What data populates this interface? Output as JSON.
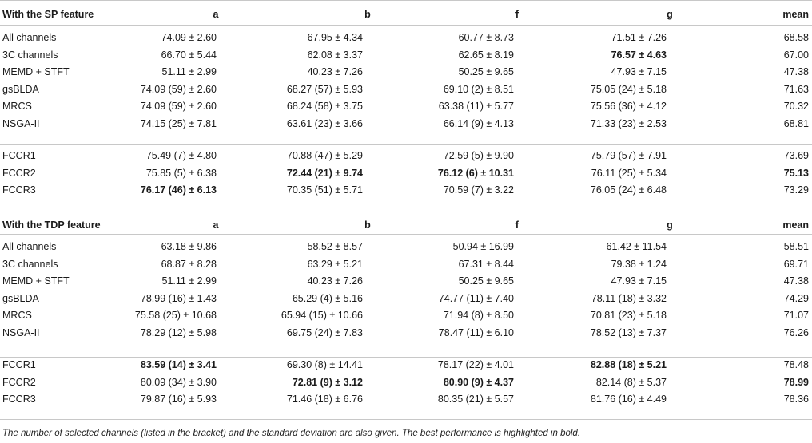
{
  "sections": [
    {
      "header": [
        "With the SP feature",
        "a",
        "b",
        "f",
        "g",
        "mean"
      ],
      "groups": [
        [
          {
            "name": "All channels",
            "cells": [
              "74.09 ± 2.60",
              "67.95 ± 4.34",
              "60.77 ± 8.73",
              "71.51 ± 7.26",
              "68.58"
            ],
            "bold": [
              false,
              false,
              false,
              false,
              false
            ]
          },
          {
            "name": "3C channels",
            "cells": [
              "66.70 ± 5.44",
              "62.08 ± 3.37",
              "62.65 ± 8.19",
              "76.57 ± 4.63",
              "67.00"
            ],
            "bold": [
              false,
              false,
              false,
              true,
              false
            ]
          },
          {
            "name": "MEMD + STFT",
            "cells": [
              "51.11 ± 2.99",
              "40.23 ± 7.26",
              "50.25 ± 9.65",
              "47.93 ± 7.15",
              "47.38"
            ],
            "bold": [
              false,
              false,
              false,
              false,
              false
            ]
          },
          {
            "name": "gsBLDA",
            "cells": [
              "74.09 (59) ± 2.60",
              "68.27 (57) ± 5.93",
              "69.10 (2) ± 8.51",
              "75.05 (24) ± 5.18",
              "71.63"
            ],
            "bold": [
              false,
              false,
              false,
              false,
              false
            ]
          },
          {
            "name": "MRCS",
            "cells": [
              "74.09 (59) ± 2.60",
              "68.24 (58) ± 3.75",
              "63.38 (11) ± 5.77",
              "75.56 (36) ± 4.12",
              "70.32"
            ],
            "bold": [
              false,
              false,
              false,
              false,
              false
            ]
          },
          {
            "name": "NSGA-II",
            "cells": [
              "74.15 (25) ± 7.81",
              "63.61 (23) ± 3.66",
              "66.14 (9) ± 4.13",
              "71.33 (23) ± 2.53",
              "68.81"
            ],
            "bold": [
              false,
              false,
              false,
              false,
              false
            ]
          }
        ],
        [
          {
            "name": "FCCR1",
            "cells": [
              "75.49 (7) ± 4.80",
              "70.88 (47) ± 5.29",
              "72.59 (5) ± 9.90",
              "75.79 (57) ± 7.91",
              "73.69"
            ],
            "bold": [
              false,
              false,
              false,
              false,
              false
            ]
          },
          {
            "name": "FCCR2",
            "cells": [
              "75.85 (5) ± 6.38",
              "72.44 (21) ± 9.74",
              "76.12 (6) ± 10.31",
              "76.11 (25) ± 5.34",
              "75.13"
            ],
            "bold": [
              false,
              true,
              true,
              false,
              true
            ]
          },
          {
            "name": "FCCR3",
            "cells": [
              "76.17 (46) ± 6.13",
              "70.35 (51) ± 5.71",
              "70.59 (7) ± 3.22",
              "76.05 (24) ± 6.48",
              "73.29"
            ],
            "bold": [
              true,
              false,
              false,
              false,
              false
            ]
          }
        ]
      ]
    },
    {
      "header": [
        "With the TDP feature",
        "a",
        "b",
        "f",
        "g",
        "mean"
      ],
      "groups": [
        [
          {
            "name": "All channels",
            "cells": [
              "63.18 ± 9.86",
              "58.52 ± 8.57",
              "50.94 ± 16.99",
              "61.42 ± 11.54",
              "58.51"
            ],
            "bold": [
              false,
              false,
              false,
              false,
              false
            ]
          },
          {
            "name": "3C channels",
            "cells": [
              "68.87 ± 8.28",
              "63.29 ± 5.21",
              "67.31 ± 8.44",
              "79.38 ± 1.24",
              "69.71"
            ],
            "bold": [
              false,
              false,
              false,
              false,
              false
            ]
          },
          {
            "name": "MEMD + STFT",
            "cells": [
              "51.11 ± 2.99",
              "40.23 ± 7.26",
              "50.25 ± 9.65",
              "47.93 ± 7.15",
              "47.38"
            ],
            "bold": [
              false,
              false,
              false,
              false,
              false
            ]
          },
          {
            "name": "gsBLDA",
            "cells": [
              "78.99 (16) ± 1.43",
              "65.29 (4) ± 5.16",
              "74.77 (11) ± 7.40",
              "78.11 (18) ± 3.32",
              "74.29"
            ],
            "bold": [
              false,
              false,
              false,
              false,
              false
            ]
          },
          {
            "name": "MRCS",
            "cells": [
              "75.58 (25) ± 10.68",
              "65.94 (15) ± 10.66",
              "71.94 (8) ± 8.50",
              "70.81 (23) ± 5.18",
              "71.07"
            ],
            "bold": [
              false,
              false,
              false,
              false,
              false
            ]
          },
          {
            "name": "NSGA-II",
            "cells": [
              "78.29 (12) ± 5.98",
              "69.75 (24) ± 7.83",
              "78.47 (11) ± 6.10",
              "78.52 (13) ± 7.37",
              "76.26"
            ],
            "bold": [
              false,
              false,
              false,
              false,
              false
            ]
          }
        ],
        [
          {
            "name": "FCCR1",
            "cells": [
              "83.59 (14) ± 3.41",
              "69.30 (8) ± 14.41",
              "78.17 (22) ± 4.01",
              "82.88 (18) ± 5.21",
              "78.48"
            ],
            "bold": [
              true,
              false,
              false,
              true,
              false
            ]
          },
          {
            "name": "FCCR2",
            "cells": [
              "80.09 (34) ± 3.90",
              "72.81 (9) ± 3.12",
              "80.90 (9) ± 4.37",
              "82.14 (8) ± 5.37",
              "78.99"
            ],
            "bold": [
              false,
              true,
              true,
              false,
              true
            ]
          },
          {
            "name": "FCCR3",
            "cells": [
              "79.87 (16) ± 5.93",
              "71.46 (18) ± 6.76",
              "80.35 (21) ± 5.57",
              "81.76 (16) ± 4.49",
              "78.36"
            ],
            "bold": [
              false,
              false,
              false,
              false,
              false
            ]
          }
        ]
      ]
    }
  ],
  "footnote": "The number of selected channels (listed in the bracket) and the standard deviation are also given. The best performance is highlighted in bold."
}
